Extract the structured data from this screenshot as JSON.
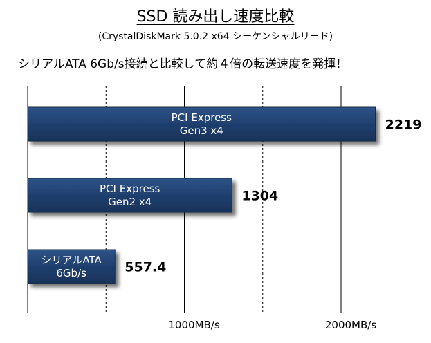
{
  "title": "SSD 読み出し速度比較",
  "subtitle": "(CrystalDiskMark  5.0.2 x64 シーケンシャルリード)",
  "headline": "シリアルATA  6Gb/s接続と比較して約４倍の転送速度を発揮！",
  "chart_data": {
    "type": "bar",
    "orientation": "horizontal",
    "categories": [
      [
        "PCI Express",
        "Gen3 x4"
      ],
      [
        "PCI Express",
        "Gen2 x4"
      ],
      [
        "シリアルATA",
        "6Gb/s"
      ]
    ],
    "values": [
      2219,
      1304,
      557.4
    ],
    "value_labels": [
      "2219",
      "1304",
      "557.4"
    ],
    "xlim": [
      0,
      2500
    ],
    "x_ticks": [
      1000,
      2000
    ],
    "x_tick_labels": [
      "1000MB/s",
      "2000MB/s"
    ],
    "gridlines": [
      0,
      500,
      1000,
      1500,
      2000
    ],
    "grid": true,
    "colors": {
      "bar": "#1f3f6e",
      "bar_edge": "#14294a",
      "bar_text": "#ffffff",
      "grid": "#000000"
    }
  }
}
